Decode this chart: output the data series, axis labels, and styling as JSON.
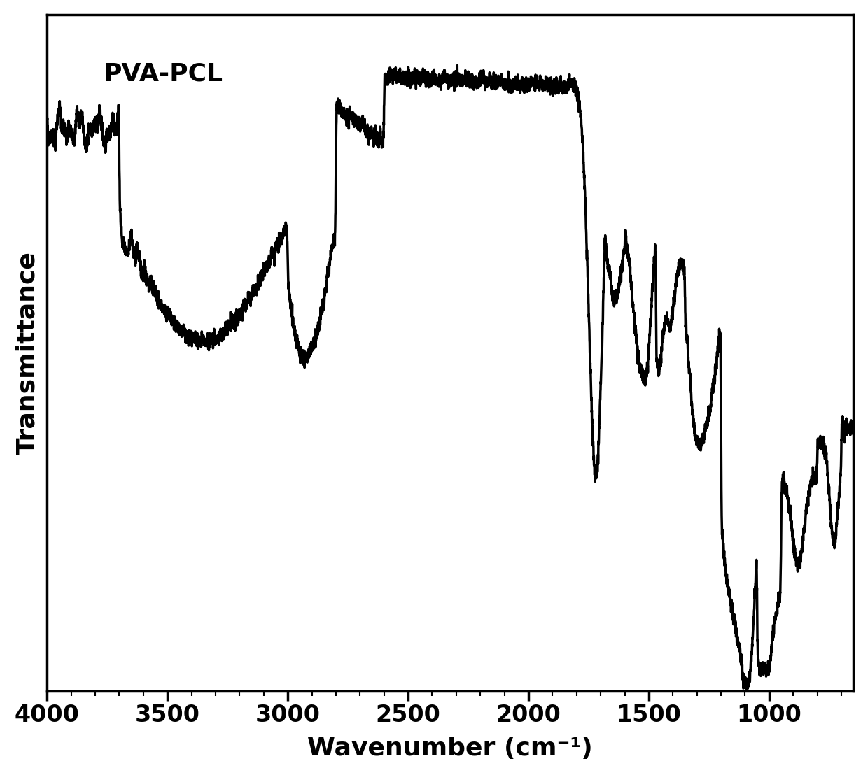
{
  "xlabel": "Wavenumber (cm⁻¹)",
  "ylabel": "Transmittance",
  "label": "PVA-PCL",
  "x_ticks": [
    4000,
    3500,
    3000,
    2500,
    2000,
    1500,
    1000
  ],
  "line_color": "#000000",
  "line_width": 2.5,
  "background_color": "#ffffff",
  "label_fontsize": 26,
  "tick_fontsize": 24
}
